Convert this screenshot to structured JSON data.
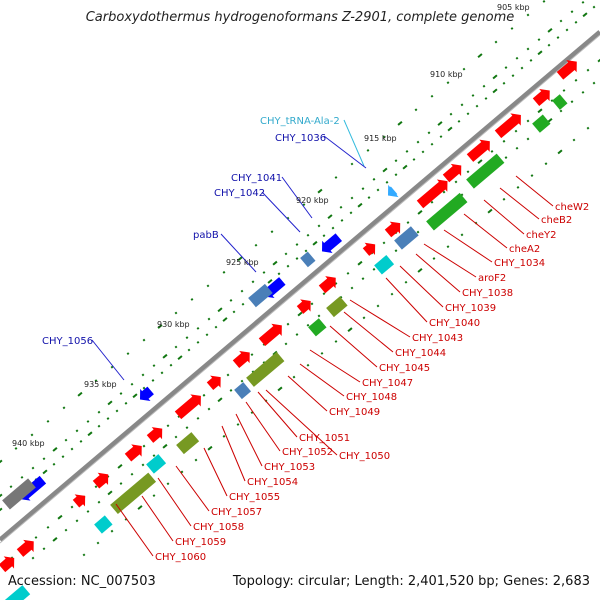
{
  "title": "Carboxydothermus hydrogenoformans Z-2901, complete genome",
  "accession": "Accession: NC_007503",
  "stats": "Topology: circular; Length: 2,401,520 bp; Genes: 2,683",
  "colors": {
    "backbone": "#8a8a8a",
    "plus_strand_gene": "#ff0000",
    "minus_strand_gene": "#0000ff",
    "cog_green": "#22aa22",
    "cog_olive": "#779922",
    "cog_steelblue": "#4a7fb8",
    "cog_cyan": "#00cccc",
    "cog_gray": "#777777",
    "rna_lightblue": "#33aaff",
    "dots": "#117711"
  },
  "ticks": [
    "905 kbp",
    "910 kbp",
    "915 kbp",
    "920 kbp",
    "925 kbp",
    "930 kbp",
    "935 kbp",
    "940 kbp"
  ],
  "left_labels": [
    "CHY_tRNA-Ala-2",
    "CHY_1036",
    "CHY_1041",
    "CHY_1042",
    "pabB",
    "CHY_1056"
  ],
  "right_labels": [
    "cheW2",
    "cheB2",
    "cheY2",
    "cheA2",
    "CHY_1034",
    "aroF2",
    "CHY_1038",
    "CHY_1039",
    "CHY_1040",
    "CHY_1043",
    "CHY_1044",
    "CHY_1045",
    "CHY_1047",
    "CHY_1048",
    "CHY_1049",
    "CHY_1051",
    "CHY_1052",
    "CHY_1050",
    "CHY_1053",
    "CHY_1054",
    "CHY_1055",
    "CHY_1057",
    "CHY_1058",
    "CHY_1059",
    "CHY_1060"
  ]
}
